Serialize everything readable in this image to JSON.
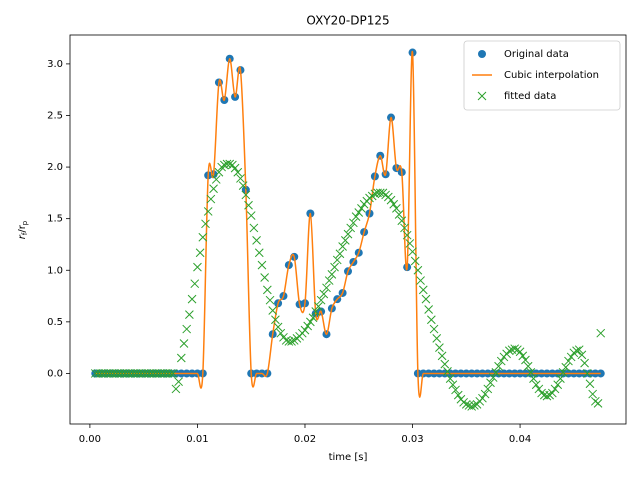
{
  "chart_data": {
    "type": "scatter",
    "title": "OXY20-DP125",
    "xlabel": "time [s]",
    "ylabel": [
      "r",
      "f",
      "/r",
      "p"
    ],
    "xlim": [
      -0.00185,
      0.04985
    ],
    "ylim": [
      -0.49,
      3.28
    ],
    "xticks": [
      {
        "value": 0,
        "label": "0.00"
      },
      {
        "value": 0.01,
        "label": "0.01"
      },
      {
        "value": 0.02,
        "label": "0.02"
      },
      {
        "value": 0.03,
        "label": "0.03"
      },
      {
        "value": 0.04,
        "label": "0.04"
      }
    ],
    "yticks": [
      {
        "value": 0,
        "label": "0.0"
      },
      0.5,
      {
        "value": 1,
        "label": "1.0"
      },
      1.5,
      {
        "value": 2,
        "label": "2.0"
      },
      2.5,
      {
        "value": 3,
        "label": "3.0"
      }
    ],
    "legend": "upper right",
    "x": [
      0.0005,
      0.001,
      0.0015,
      0.002,
      0.0025,
      0.003,
      0.0035,
      0.004,
      0.0045,
      0.005,
      0.0055,
      0.006,
      0.0065,
      0.007,
      0.0075,
      0.008,
      0.0085,
      0.009,
      0.0095,
      0.01,
      0.0105,
      0.011,
      0.0115,
      0.012,
      0.0125,
      0.013,
      0.0135,
      0.014,
      0.0145,
      0.015,
      0.0155,
      0.016,
      0.0165,
      0.017,
      0.0175,
      0.018,
      0.0185,
      0.019,
      0.0195,
      0.02,
      0.0205,
      0.021,
      0.0215,
      0.022,
      0.0225,
      0.023,
      0.0235,
      0.024,
      0.0245,
      0.025,
      0.0255,
      0.026,
      0.0265,
      0.027,
      0.0275,
      0.028,
      0.0285,
      0.029,
      0.0295,
      0.03,
      0.0305,
      0.031,
      0.0315,
      0.032,
      0.0325,
      0.033,
      0.0335,
      0.034,
      0.0345,
      0.035,
      0.0355,
      0.036,
      0.0365,
      0.037,
      0.0375,
      0.038,
      0.0385,
      0.039,
      0.0395,
      0.04,
      0.0405,
      0.041,
      0.0415,
      0.042,
      0.0425,
      0.043,
      0.0435,
      0.044,
      0.0445,
      0.045,
      0.0455,
      0.046,
      0.0465,
      0.047,
      0.0475
    ],
    "series": [
      {
        "name": "Original data",
        "color": "#1f77b4",
        "marker": "o",
        "values": [
          0,
          0,
          0,
          0,
          0,
          0,
          0,
          0,
          0,
          0,
          0,
          0,
          0,
          0,
          0,
          0,
          0,
          0,
          0,
          0,
          0,
          1.92,
          1.93,
          2.82,
          2.65,
          3.05,
          2.68,
          2.94,
          1.78,
          0,
          0,
          0,
          0,
          0.38,
          0.68,
          0.75,
          1.05,
          1.13,
          0.67,
          0.68,
          1.55,
          0.58,
          0.6,
          0.38,
          0.63,
          0.72,
          0.78,
          0.99,
          1.08,
          1.17,
          1.37,
          1.55,
          1.91,
          2.11,
          1.93,
          2.48,
          1.99,
          1.95,
          1.03,
          3.11,
          0,
          0,
          0,
          0,
          0,
          0,
          0,
          0,
          0,
          0,
          0,
          0,
          0,
          0,
          0,
          0,
          0,
          0,
          0,
          0,
          0,
          0,
          0,
          0,
          0,
          0,
          0,
          0,
          0,
          0,
          0,
          0,
          0,
          0,
          0
        ]
      },
      {
        "name": "Cubic interpolation",
        "color": "#ff7f0e",
        "marker": "line",
        "values": [
          0,
          0,
          0,
          0,
          0,
          0,
          0,
          0,
          0,
          0,
          0,
          0,
          0,
          0,
          0,
          0,
          0,
          0,
          0,
          0,
          0,
          1.92,
          1.93,
          2.82,
          2.65,
          3.05,
          2.68,
          2.94,
          1.78,
          0,
          0,
          0,
          0,
          0.38,
          0.68,
          0.75,
          1.05,
          1.13,
          0.67,
          0.68,
          1.55,
          0.58,
          0.6,
          0.38,
          0.63,
          0.72,
          0.78,
          0.99,
          1.08,
          1.17,
          1.37,
          1.55,
          1.91,
          2.11,
          1.93,
          2.48,
          1.99,
          1.95,
          1.03,
          3.11,
          0,
          0,
          0,
          0,
          0,
          0,
          0,
          0,
          0,
          0,
          0,
          0,
          0,
          0,
          0,
          0,
          0,
          0,
          0,
          0,
          0,
          0,
          0,
          0,
          0,
          0,
          0,
          0,
          0,
          0,
          0,
          0,
          0,
          0,
          0
        ]
      },
      {
        "name": "fitted data",
        "color": "#2ca02c",
        "marker": "x",
        "x": [
          0.0005,
          0.00075,
          0.001,
          0.00125,
          0.0015,
          0.00175,
          0.002,
          0.00225,
          0.0025,
          0.00275,
          0.003,
          0.00325,
          0.0035,
          0.00375,
          0.004,
          0.00425,
          0.0045,
          0.00475,
          0.005,
          0.00525,
          0.0055,
          0.00575,
          0.006,
          0.00625,
          0.0065,
          0.00675,
          0.007,
          0.00725,
          0.0075,
          0.00775,
          0.008,
          0.00825,
          0.0085,
          0.00875,
          0.009,
          0.00925,
          0.0095,
          0.00975,
          0.01,
          0.01025,
          0.0105,
          0.01075,
          0.011,
          0.01125,
          0.0115,
          0.01175,
          0.012,
          0.01225,
          0.0125,
          0.01275,
          0.013,
          0.01325,
          0.0135,
          0.01375,
          0.014,
          0.01425,
          0.0145,
          0.01475,
          0.015,
          0.01525,
          0.0155,
          0.01575,
          0.016,
          0.01625,
          0.0165,
          0.01675,
          0.017,
          0.01725,
          0.0175,
          0.01775,
          0.018,
          0.01825,
          0.0185,
          0.01875,
          0.019,
          0.01925,
          0.0195,
          0.01975,
          0.02,
          0.02025,
          0.0205,
          0.02075,
          0.021,
          0.02125,
          0.0215,
          0.02175,
          0.022,
          0.02225,
          0.0225,
          0.02275,
          0.023,
          0.02325,
          0.0235,
          0.02375,
          0.024,
          0.02425,
          0.0245,
          0.02475,
          0.025,
          0.02525,
          0.0255,
          0.02575,
          0.026,
          0.02625,
          0.0265,
          0.02675,
          0.027,
          0.02725,
          0.0275,
          0.02775,
          0.028,
          0.02825,
          0.0285,
          0.02875,
          0.029,
          0.02925,
          0.0295,
          0.02975,
          0.03,
          0.03025,
          0.0305,
          0.03075,
          0.031,
          0.03125,
          0.0315,
          0.03175,
          0.032,
          0.03225,
          0.0325,
          0.03275,
          0.033,
          0.03325,
          0.0335,
          0.03375,
          0.034,
          0.03425,
          0.0345,
          0.03475,
          0.035,
          0.03525,
          0.0355,
          0.03575,
          0.036,
          0.03625,
          0.0365,
          0.03675,
          0.037,
          0.03725,
          0.0375,
          0.03775,
          0.038,
          0.03825,
          0.0385,
          0.03875,
          0.039,
          0.03925,
          0.0395,
          0.03975,
          0.04,
          0.04025,
          0.0405,
          0.04075,
          0.041,
          0.04125,
          0.0415,
          0.04175,
          0.042,
          0.04225,
          0.0425,
          0.04275,
          0.043,
          0.04325,
          0.0435,
          0.04375,
          0.044,
          0.04425,
          0.0445,
          0.04475,
          0.045,
          0.04525,
          0.0455,
          0.04575,
          0.046,
          0.04625,
          0.0465,
          0.04675,
          0.047,
          0.04725,
          0.0475
        ],
        "values": [
          0,
          0,
          0,
          0,
          0,
          0,
          0,
          0,
          0,
          0,
          0,
          0,
          0,
          0,
          0,
          0,
          0,
          0,
          0,
          0,
          0,
          0,
          0,
          0,
          0,
          0,
          0,
          0,
          0,
          0,
          -0.15,
          -0.08,
          0.15,
          0.29,
          0.43,
          0.57,
          0.72,
          0.87,
          1.03,
          1.17,
          1.32,
          1.45,
          1.57,
          1.69,
          1.79,
          1.88,
          1.95,
          2.0,
          2.02,
          2.03,
          2.03,
          2.02,
          1.99,
          1.95,
          1.89,
          1.82,
          1.73,
          1.63,
          1.53,
          1.41,
          1.29,
          1.17,
          1.05,
          0.93,
          0.81,
          0.71,
          0.61,
          0.52,
          0.45,
          0.39,
          0.35,
          0.32,
          0.31,
          0.31,
          0.32,
          0.34,
          0.36,
          0.39,
          0.42,
          0.46,
          0.5,
          0.54,
          0.6,
          0.65,
          0.71,
          0.77,
          0.83,
          0.9,
          0.96,
          1.03,
          1.1,
          1.16,
          1.23,
          1.29,
          1.35,
          1.41,
          1.46,
          1.52,
          1.56,
          1.6,
          1.64,
          1.67,
          1.7,
          1.72,
          1.74,
          1.75,
          1.75,
          1.75,
          1.73,
          1.71,
          1.68,
          1.64,
          1.6,
          1.54,
          1.48,
          1.41,
          1.34,
          1.26,
          1.18,
          1.09,
          1.0,
          0.9,
          0.81,
          0.72,
          0.62,
          0.52,
          0.43,
          0.34,
          0.25,
          0.17,
          0.09,
          0.02,
          -0.05,
          -0.11,
          -0.16,
          -0.21,
          -0.25,
          -0.28,
          -0.3,
          -0.31,
          -0.32,
          -0.31,
          -0.3,
          -0.27,
          -0.24,
          -0.2,
          -0.15,
          -0.09,
          -0.04,
          0.01,
          0.07,
          0.12,
          0.16,
          0.19,
          0.22,
          0.23,
          0.24,
          0.23,
          0.21,
          0.17,
          0.13,
          0.07,
          0.01,
          -0.05,
          -0.11,
          -0.15,
          -0.19,
          -0.21,
          -0.22,
          -0.21,
          -0.19,
          -0.15,
          -0.11,
          -0.05,
          0.01,
          0.06,
          0.12,
          0.16,
          0.2,
          0.22,
          0.23,
          0.18,
          0.1,
          0,
          -0.1,
          -0.2,
          -0.27,
          -0.29,
          0.39
        ]
      }
    ]
  }
}
